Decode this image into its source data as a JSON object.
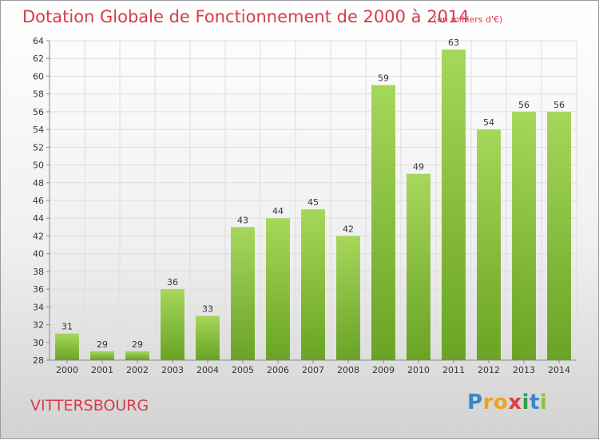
{
  "header": {
    "title": "Dotation Globale de Fonctionnement de 2000 à 2014",
    "unit": "(en milliers d'€)"
  },
  "footer": {
    "commune": "VITTERSBOURG",
    "logo_text": "Proxiti"
  },
  "colors": {
    "bar_light": "#a6d75a",
    "bar_dark": "#6aa324",
    "title": "#d93a4a",
    "grid": "#dddddd"
  },
  "chart_data": {
    "type": "bar",
    "title": "Dotation Globale de Fonctionnement de 2000 à 2014",
    "subtitle": "(en milliers d'€)",
    "categories": [
      "2000",
      "2001",
      "2002",
      "2003",
      "2004",
      "2005",
      "2006",
      "2007",
      "2008",
      "2009",
      "2010",
      "2011",
      "2012",
      "2013",
      "2014"
    ],
    "values": [
      31,
      29,
      29,
      36,
      33,
      43,
      44,
      45,
      42,
      59,
      49,
      63,
      54,
      56,
      56
    ],
    "ylim": [
      28,
      64
    ],
    "yticks": [
      28,
      30,
      32,
      34,
      36,
      38,
      40,
      42,
      44,
      46,
      48,
      50,
      52,
      54,
      56,
      58,
      60,
      62,
      64
    ],
    "grid": true,
    "legend": "none"
  }
}
